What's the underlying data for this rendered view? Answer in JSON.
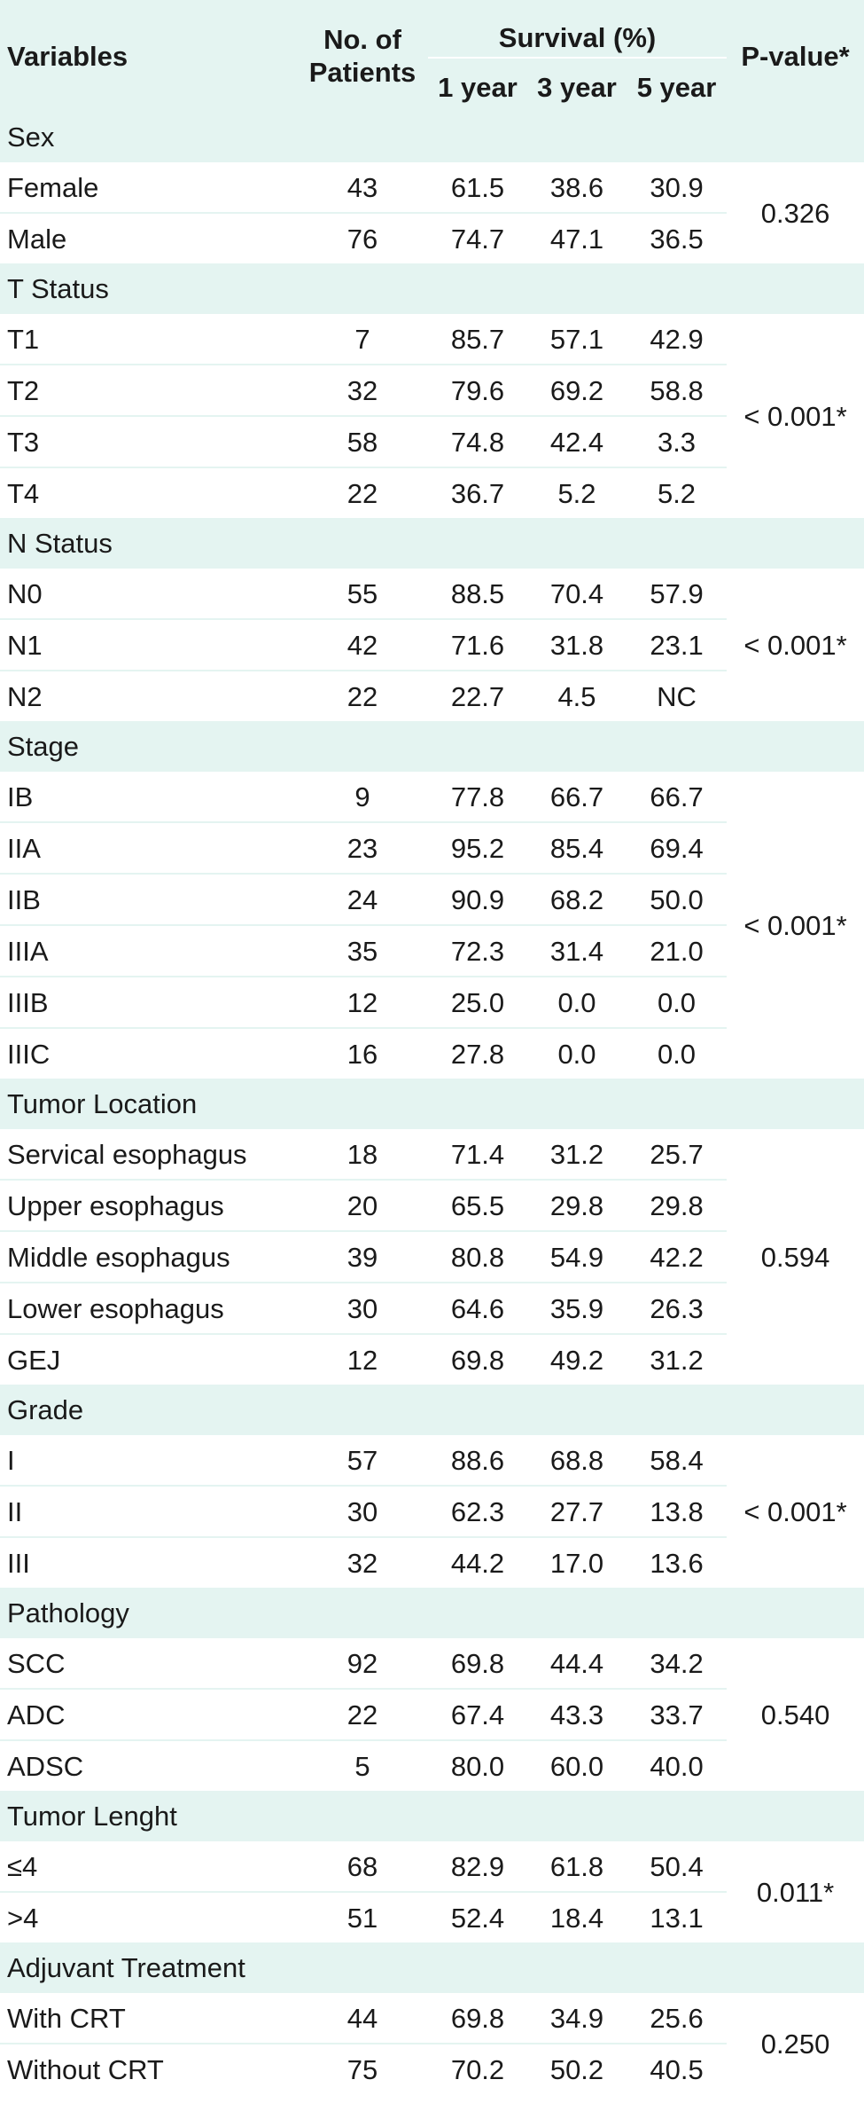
{
  "header": {
    "variables": "Variables",
    "patients_line1": "No. of",
    "patients_line2": "Patients",
    "survival": "Survival (%)",
    "year1": "1 year",
    "year3": "3 year",
    "year5": "5 year",
    "pvalue": "P-value*"
  },
  "groups": [
    {
      "label": "Sex",
      "pvalue": "0.326",
      "rows": [
        {
          "name": "Female",
          "n": "43",
          "y1": "61.5",
          "y3": "38.6",
          "y5": "30.9"
        },
        {
          "name": "Male",
          "n": "76",
          "y1": "74.7",
          "y3": "47.1",
          "y5": "36.5"
        }
      ]
    },
    {
      "label": "T Status",
      "pvalue": "< 0.001*",
      "rows": [
        {
          "name": "T1",
          "n": "7",
          "y1": "85.7",
          "y3": "57.1",
          "y5": "42.9"
        },
        {
          "name": "T2",
          "n": "32",
          "y1": "79.6",
          "y3": "69.2",
          "y5": "58.8"
        },
        {
          "name": "T3",
          "n": "58",
          "y1": "74.8",
          "y3": "42.4",
          "y5": "3.3"
        },
        {
          "name": "T4",
          "n": "22",
          "y1": "36.7",
          "y3": "5.2",
          "y5": "5.2"
        }
      ]
    },
    {
      "label": "N Status",
      "pvalue": "< 0.001*",
      "rows": [
        {
          "name": "N0",
          "n": "55",
          "y1": "88.5",
          "y3": "70.4",
          "y5": "57.9"
        },
        {
          "name": "N1",
          "n": "42",
          "y1": "71.6",
          "y3": "31.8",
          "y5": "23.1"
        },
        {
          "name": "N2",
          "n": "22",
          "y1": "22.7",
          "y3": "4.5",
          "y5": "NC"
        }
      ]
    },
    {
      "label": "Stage",
      "pvalue": "< 0.001*",
      "rows": [
        {
          "name": "IB",
          "n": "9",
          "y1": "77.8",
          "y3": "66.7",
          "y5": "66.7"
        },
        {
          "name": "IIA",
          "n": "23",
          "y1": "95.2",
          "y3": "85.4",
          "y5": "69.4"
        },
        {
          "name": "IIB",
          "n": "24",
          "y1": "90.9",
          "y3": "68.2",
          "y5": "50.0"
        },
        {
          "name": "IIIA",
          "n": "35",
          "y1": "72.3",
          "y3": "31.4",
          "y5": "21.0"
        },
        {
          "name": "IIIB",
          "n": "12",
          "y1": "25.0",
          "y3": "0.0",
          "y5": "0.0"
        },
        {
          "name": "IIIC",
          "n": "16",
          "y1": "27.8",
          "y3": "0.0",
          "y5": "0.0"
        }
      ]
    },
    {
      "label": "Tumor Location",
      "pvalue": "0.594",
      "rows": [
        {
          "name": "Servical esophagus",
          "n": "18",
          "y1": "71.4",
          "y3": "31.2",
          "y5": "25.7"
        },
        {
          "name": "Upper esophagus",
          "n": "20",
          "y1": "65.5",
          "y3": "29.8",
          "y5": "29.8"
        },
        {
          "name": "Middle esophagus",
          "n": "39",
          "y1": "80.8",
          "y3": "54.9",
          "y5": "42.2"
        },
        {
          "name": "Lower esophagus",
          "n": "30",
          "y1": "64.6",
          "y3": "35.9",
          "y5": "26.3"
        },
        {
          "name": "GEJ",
          "n": "12",
          "y1": "69.8",
          "y3": "49.2",
          "y5": "31.2"
        }
      ]
    },
    {
      "label": "Grade",
      "pvalue": "< 0.001*",
      "rows": [
        {
          "name": "I",
          "n": "57",
          "y1": "88.6",
          "y3": "68.8",
          "y5": "58.4"
        },
        {
          "name": "II",
          "n": "30",
          "y1": "62.3",
          "y3": "27.7",
          "y5": "13.8"
        },
        {
          "name": "III",
          "n": "32",
          "y1": "44.2",
          "y3": "17.0",
          "y5": "13.6"
        }
      ]
    },
    {
      "label": "Pathology",
      "pvalue": "0.540",
      "rows": [
        {
          "name": "SCC",
          "n": "92",
          "y1": "69.8",
          "y3": "44.4",
          "y5": "34.2"
        },
        {
          "name": "ADC",
          "n": "22",
          "y1": "67.4",
          "y3": "43.3",
          "y5": "33.7"
        },
        {
          "name": "ADSC",
          "n": "5",
          "y1": "80.0",
          "y3": "60.0",
          "y5": "40.0"
        }
      ]
    },
    {
      "label": "Tumor Lenght",
      "pvalue": "0.011*",
      "rows": [
        {
          "name": "≤4",
          "n": "68",
          "y1": "82.9",
          "y3": "61.8",
          "y5": "50.4"
        },
        {
          "name": ">4",
          "n": "51",
          "y1": "52.4",
          "y3": "18.4",
          "y5": "13.1"
        }
      ]
    },
    {
      "label": "Adjuvant Treatment",
      "pvalue": "0.250",
      "rows": [
        {
          "name": "With CRT",
          "n": "44",
          "y1": "69.8",
          "y3": "34.9",
          "y5": "25.6"
        },
        {
          "name": "Without CRT",
          "n": "75",
          "y1": "70.2",
          "y3": "50.2",
          "y5": "40.5"
        }
      ]
    }
  ]
}
